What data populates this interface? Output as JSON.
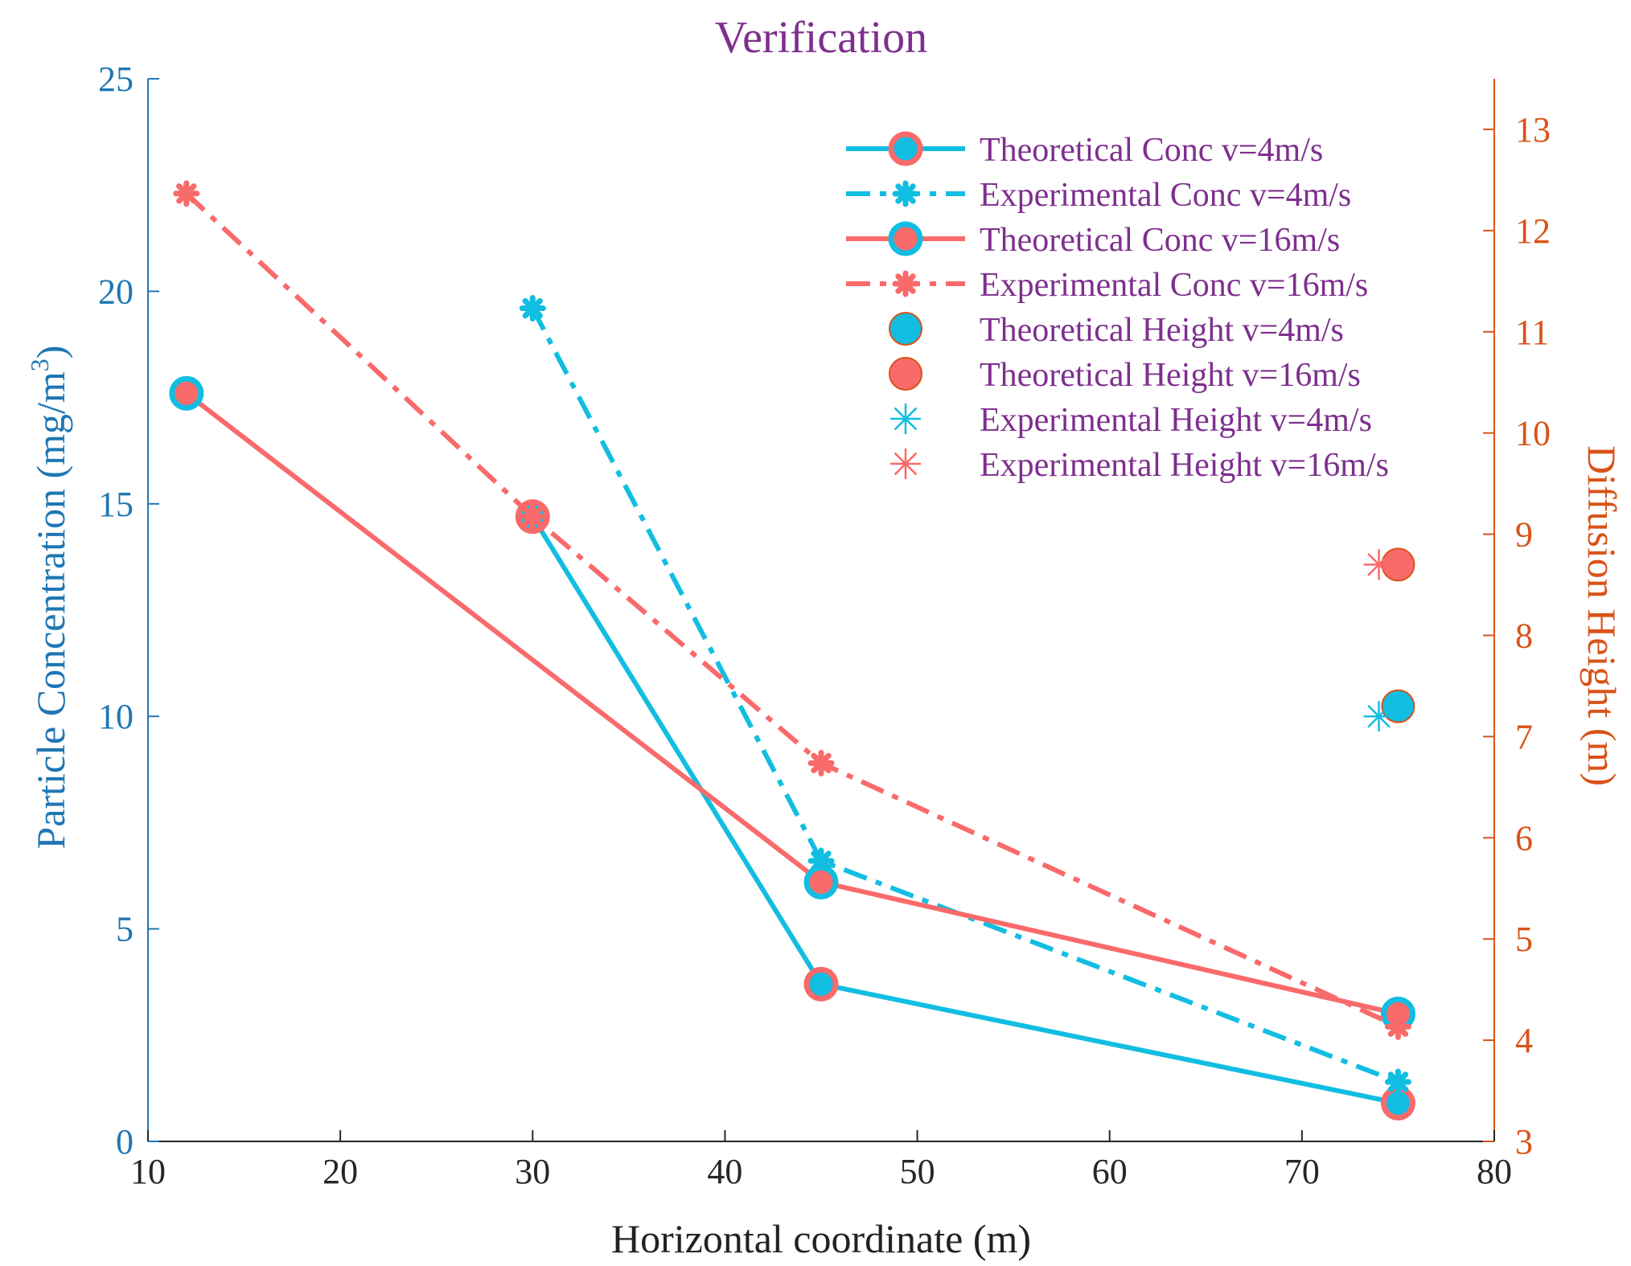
{
  "chart_data": {
    "type": "line",
    "title": "Verification",
    "xlabel": "Horizontal coordinate (m)",
    "ylabel_left": "Particle Concentration (mg/m",
    "ylabel_left_sup": "3",
    "ylabel_left_close": ")",
    "ylabel_right": "Diffusion Height (m)",
    "xlim": [
      10,
      80
    ],
    "ylim_left": [
      0,
      25
    ],
    "ylim_right": [
      3,
      13.5
    ],
    "xticks": [
      10,
      20,
      30,
      40,
      50,
      60,
      70,
      80
    ],
    "yticks_left": [
      0,
      5,
      10,
      15,
      20,
      25
    ],
    "yticks_right": [
      3,
      4,
      5,
      6,
      7,
      8,
      9,
      10,
      11,
      12,
      13
    ],
    "colors": {
      "cyan": "#12BDE2",
      "salmon": "#F96A6A",
      "left_axis": "#1F77B4",
      "right_axis": "#D95319",
      "title": "#7E2F8E",
      "legend_text": "#7E2F8E"
    },
    "series": [
      {
        "name": "Theoretical Conc v=4m/s",
        "axis": "left",
        "style": "solid",
        "marker": "circle",
        "line_color": "#12BDE2",
        "marker_face": "#12BDE2",
        "marker_edge": "#F96A6A",
        "x": [
          30,
          45,
          75
        ],
        "y": [
          14.7,
          3.7,
          0.9
        ]
      },
      {
        "name": "Experimental Conc v=4m/s",
        "axis": "left",
        "style": "dashdot",
        "marker": "star",
        "line_color": "#12BDE2",
        "marker_face": "#12BDE2",
        "marker_edge": "#12BDE2",
        "x": [
          30,
          45,
          75
        ],
        "y": [
          19.6,
          6.6,
          1.4
        ]
      },
      {
        "name": "Theoretical Conc v=16m/s",
        "axis": "left",
        "style": "solid",
        "marker": "circle",
        "line_color": "#F96A6A",
        "marker_face": "#F96A6A",
        "marker_edge": "#12BDE2",
        "x": [
          12,
          45,
          75
        ],
        "y": [
          17.6,
          6.1,
          3.0
        ]
      },
      {
        "name": "Experimental Conc v=16m/s",
        "axis": "left",
        "style": "dashdot",
        "marker": "star",
        "line_color": "#F96A6A",
        "marker_face": "#F96A6A",
        "marker_edge": "#F96A6A",
        "x": [
          12,
          30,
          45,
          75
        ],
        "y": [
          22.3,
          14.7,
          8.9,
          2.7
        ]
      },
      {
        "name": "Theoretical Height v=4m/s",
        "axis": "right",
        "style": "none",
        "marker": "bigcircle",
        "line_color": "#12BDE2",
        "marker_face": "#12BDE2",
        "marker_edge": "#D95319",
        "x": [
          75
        ],
        "y": [
          7.3
        ]
      },
      {
        "name": "Theoretical Height v=16m/s",
        "axis": "right",
        "style": "none",
        "marker": "bigcircle",
        "line_color": "#F96A6A",
        "marker_face": "#F96A6A",
        "marker_edge": "#D95319",
        "x": [
          75
        ],
        "y": [
          8.7
        ]
      },
      {
        "name": "Experimental Height v=4m/s",
        "axis": "right",
        "style": "none",
        "marker": "asterisk",
        "line_color": "#12BDE2",
        "marker_face": "#12BDE2",
        "marker_edge": "#12BDE2",
        "x": [
          74
        ],
        "y": [
          7.2
        ]
      },
      {
        "name": "Experimental Height v=16m/s",
        "axis": "right",
        "style": "none",
        "marker": "asterisk",
        "line_color": "#F96A6A",
        "marker_face": "#F96A6A",
        "marker_edge": "#F96A6A",
        "x": [
          74
        ],
        "y": [
          8.7
        ]
      }
    ],
    "legend_position": "top-right",
    "grid": false
  }
}
